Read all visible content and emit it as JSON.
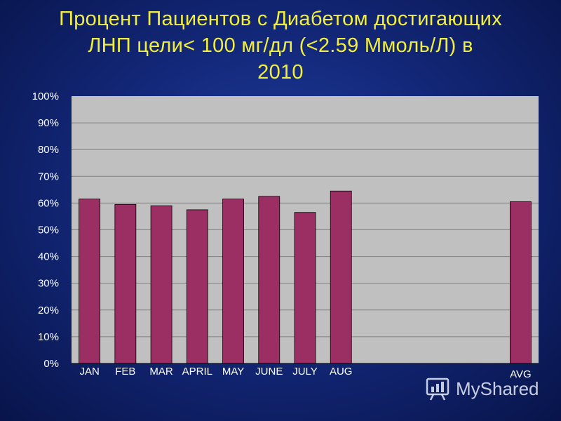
{
  "title_lines": [
    "Процент Пациентов с Диабетом достигающих",
    "ЛНП цели< 100 мг/дл (<2.59 Ммоль/Л) в",
    "2010"
  ],
  "watermark": {
    "text": "MyShared"
  },
  "colors": {
    "title": "#f2ee3c",
    "plot_bg": "#c0c0c0",
    "bar": "#9b2f63",
    "grid": "#808080",
    "tick_text": "#ffffff"
  },
  "chart_data": {
    "type": "bar",
    "title": "Процент Пациентов с Диабетом достигающих ЛНП цели< 100 мг/дл (<2.59 Ммоль/Л) в 2010",
    "xlabel": "",
    "ylabel": "",
    "ylim": [
      0,
      100
    ],
    "yticks": [
      "0%",
      "10%",
      "20%",
      "30%",
      "40%",
      "50%",
      "60%",
      "70%",
      "80%",
      "90%",
      "100%"
    ],
    "grid": true,
    "categories": [
      "JAN",
      "FEB",
      "MAR",
      "APRIL",
      "MAY",
      "JUNE",
      "JULY",
      "AUG",
      "",
      "",
      "",
      "",
      "AVG"
    ],
    "values": [
      61.5,
      59.5,
      59,
      57.5,
      61.5,
      62.5,
      56.5,
      64.5,
      null,
      null,
      null,
      null,
      60.5
    ]
  }
}
